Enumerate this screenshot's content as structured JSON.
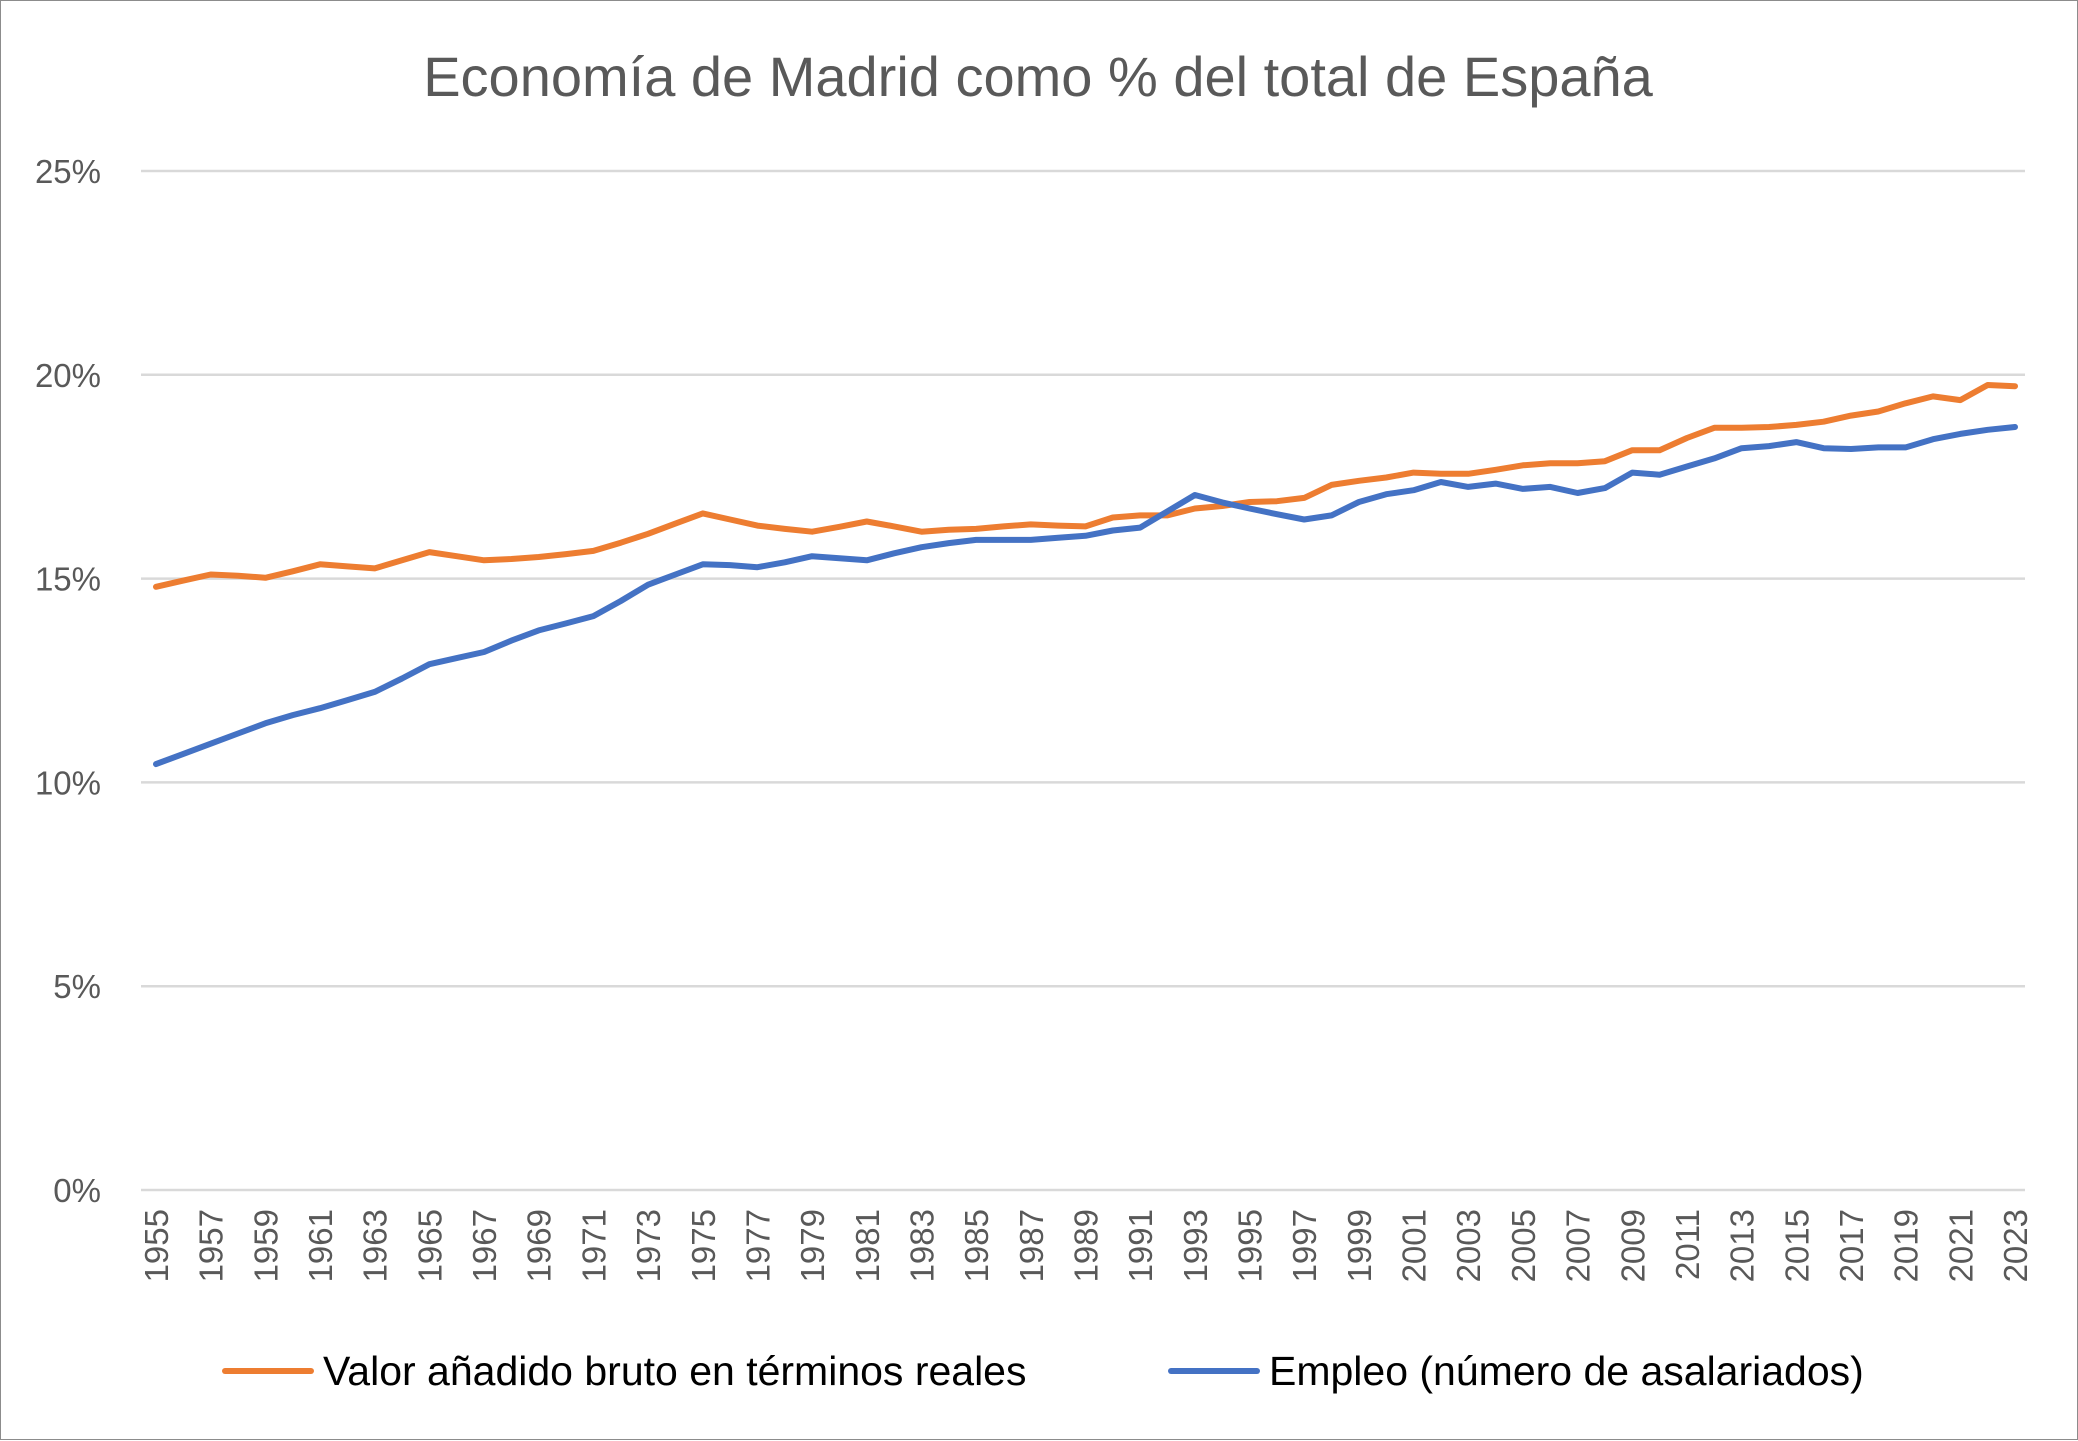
{
  "chart_data": {
    "type": "line",
    "title": "Economía de Madrid como % del total de España",
    "xlabel": "",
    "ylabel": "",
    "x": [
      1955,
      1956,
      1957,
      1958,
      1959,
      1960,
      1961,
      1962,
      1963,
      1964,
      1965,
      1966,
      1967,
      1968,
      1969,
      1970,
      1971,
      1972,
      1973,
      1974,
      1975,
      1976,
      1977,
      1978,
      1979,
      1980,
      1981,
      1982,
      1983,
      1984,
      1985,
      1986,
      1987,
      1988,
      1989,
      1990,
      1991,
      1992,
      1993,
      1994,
      1995,
      1996,
      1997,
      1998,
      1999,
      2000,
      2001,
      2002,
      2003,
      2004,
      2005,
      2006,
      2007,
      2008,
      2009,
      2010,
      2011,
      2012,
      2013,
      2014,
      2015,
      2016,
      2017,
      2018,
      2019,
      2020,
      2021,
      2022,
      2023
    ],
    "x_tick_labels": [
      "1955",
      "1957",
      "1959",
      "1961",
      "1963",
      "1965",
      "1967",
      "1969",
      "1971",
      "1973",
      "1975",
      "1977",
      "1979",
      "1981",
      "1983",
      "1985",
      "1987",
      "1989",
      "1991",
      "1993",
      "1995",
      "1997",
      "1999",
      "2001",
      "2003",
      "2005",
      "2007",
      "2009",
      "2011",
      "2013",
      "2015",
      "2017",
      "2019",
      "2021",
      "2023"
    ],
    "ylim": [
      0,
      25
    ],
    "y_ticks": [
      0,
      5,
      10,
      15,
      20,
      25
    ],
    "y_tick_labels": [
      "0%",
      "5%",
      "10%",
      "15%",
      "20%",
      "25%"
    ],
    "grid": true,
    "legend_position": "bottom",
    "series": [
      {
        "name": "Valor añadido bruto en términos reales",
        "color": "#ED7D31",
        "values": [
          14.8,
          14.95,
          15.1,
          15.07,
          15.02,
          15.18,
          15.35,
          15.3,
          15.25,
          15.45,
          15.65,
          15.55,
          15.45,
          15.48,
          15.53,
          15.6,
          15.68,
          15.88,
          16.1,
          16.35,
          16.6,
          16.45,
          16.3,
          16.22,
          16.15,
          16.27,
          16.4,
          16.28,
          16.15,
          16.2,
          16.22,
          16.28,
          16.33,
          16.3,
          16.28,
          16.5,
          16.55,
          16.55,
          16.72,
          16.78,
          16.88,
          16.9,
          16.98,
          17.3,
          17.4,
          17.48,
          17.6,
          17.57,
          17.57,
          17.67,
          17.78,
          17.83,
          17.83,
          17.88,
          18.15,
          18.15,
          18.45,
          18.7,
          18.7,
          18.72,
          18.77,
          18.85,
          19.0,
          19.1,
          19.3,
          19.47,
          19.38,
          19.75,
          19.72
        ]
      },
      {
        "name": "Empleo (número de asalariados)",
        "color": "#4472C4",
        "values": [
          10.45,
          10.7,
          10.95,
          11.2,
          11.45,
          11.65,
          11.82,
          12.02,
          12.22,
          12.55,
          12.9,
          13.05,
          13.2,
          13.48,
          13.73,
          13.9,
          14.08,
          14.45,
          14.85,
          15.1,
          15.35,
          15.33,
          15.28,
          15.4,
          15.55,
          15.5,
          15.45,
          15.62,
          15.77,
          15.87,
          15.95,
          15.95,
          15.95,
          16.0,
          16.05,
          16.18,
          16.25,
          16.65,
          17.05,
          16.87,
          16.72,
          16.58,
          16.45,
          16.55,
          16.88,
          17.07,
          17.17,
          17.37,
          17.25,
          17.33,
          17.2,
          17.25,
          17.1,
          17.22,
          17.6,
          17.55,
          17.75,
          17.95,
          18.2,
          18.25,
          18.35,
          18.2,
          18.18,
          18.22,
          18.22,
          18.42,
          18.55,
          18.65,
          18.72
        ]
      }
    ]
  }
}
